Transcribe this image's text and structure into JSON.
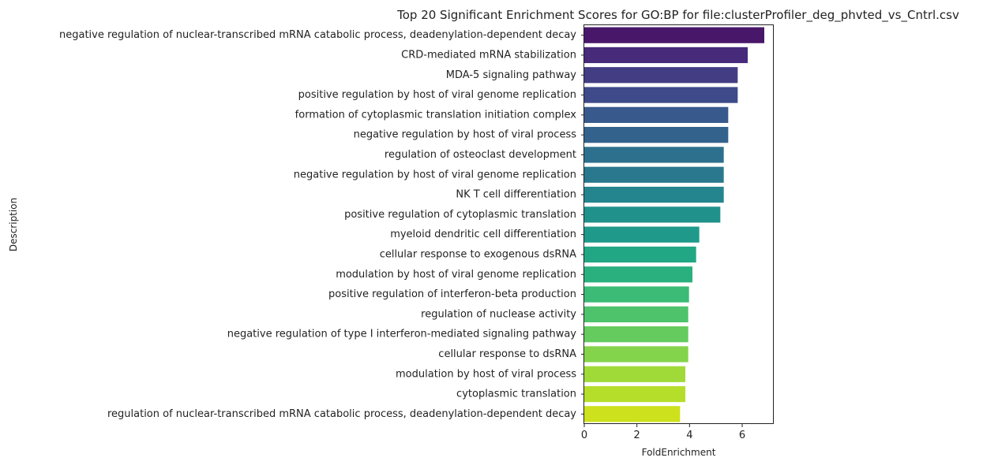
{
  "chart_data": {
    "type": "bar",
    "orientation": "horizontal",
    "title": "Top 20 Significant Enrichment Scores for GO:BP for file:clusterProfiler_deg_phvted_vs_Cntrl.csv",
    "xlabel": "FoldEnrichment",
    "ylabel": "Description",
    "xlim": [
      0,
      7.2
    ],
    "xticks": [
      0,
      2,
      4,
      6
    ],
    "grid": false,
    "categories": [
      "negative regulation of nuclear-transcribed mRNA catabolic process, deadenylation-dependent decay",
      "CRD-mediated mRNA stabilization",
      "MDA-5 signaling pathway",
      "positive regulation by host of viral genome replication",
      "formation of cytoplasmic translation initiation complex",
      "negative regulation by host of viral process",
      "regulation of osteoclast development",
      "negative regulation by host of viral genome replication",
      "NK T cell differentiation",
      "positive regulation of cytoplasmic translation",
      "myeloid dendritic cell differentiation",
      "cellular response to exogenous dsRNA",
      "modulation by host of viral genome replication",
      "positive regulation of interferon-beta production",
      "regulation of nuclease activity",
      "negative regulation of type I interferon-mediated signaling pathway",
      "cellular response to dsRNA",
      "modulation by host of viral process",
      "cytoplasmic translation",
      "regulation of nuclear-transcribed mRNA catabolic process, deadenylation-dependent decay"
    ],
    "values": [
      6.84,
      6.21,
      5.83,
      5.83,
      5.47,
      5.47,
      5.3,
      5.3,
      5.3,
      5.17,
      4.37,
      4.25,
      4.11,
      3.98,
      3.95,
      3.95,
      3.95,
      3.84,
      3.84,
      3.64
    ],
    "colors": [
      "#481769",
      "#472a7a",
      "#433d84",
      "#3e4a89",
      "#38598c",
      "#33638d",
      "#2d708e",
      "#2a788e",
      "#25858e",
      "#21918c",
      "#1f9a8a",
      "#22a785",
      "#2ab07f",
      "#3bbb75",
      "#4ec36b",
      "#65cb5e",
      "#84d44b",
      "#a0da39",
      "#b5de2b",
      "#cde11d"
    ]
  }
}
